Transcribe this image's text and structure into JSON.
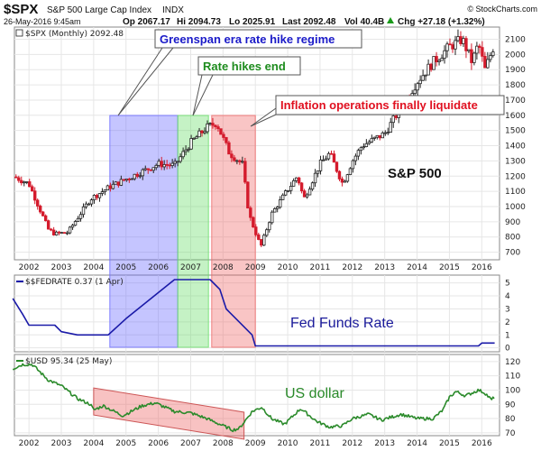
{
  "header": {
    "symbol": "$SPX",
    "name": "S&P 500 Large Cap Index",
    "exchange": "INDX",
    "date": "26-May-2016 9:45am",
    "open": "Op 2067.17",
    "high": "Hi 2094.73",
    "low": "Lo 2025.91",
    "last": "Last 2092.48",
    "vol": "Vol 40.4B",
    "chg": "Chg +27.18 (+1.32%)",
    "chg_arrow": "up-arrow-icon",
    "brand": "© StockCharts.com"
  },
  "colors": {
    "up": "#222222",
    "down": "#d41b2c",
    "fed_line": "#1a1aa8",
    "usd_line": "#2a8a2a",
    "blue_box": "#6666ff",
    "green_box": "#66dd66",
    "red_box": "#ee6666"
  },
  "chart_data": [
    {
      "type": "candlestick",
      "panel": "price",
      "title": "$SPX (Monthly) 2092.48",
      "label": "S&P 500",
      "ylim": [
        650,
        2180
      ],
      "yticks": [
        700,
        800,
        900,
        1000,
        1100,
        1200,
        1300,
        1400,
        1500,
        1600,
        1700,
        1800,
        1900,
        2000,
        2100
      ],
      "x_anchors": [
        [
          2001.5,
          1200
        ],
        [
          2002.0,
          1150
        ],
        [
          2002.6,
          850
        ],
        [
          2002.8,
          820
        ],
        [
          2003.2,
          830
        ],
        [
          2003.9,
          1050
        ],
        [
          2004.5,
          1130
        ],
        [
          2005.0,
          1180
        ],
        [
          2006.0,
          1280
        ],
        [
          2006.5,
          1270
        ],
        [
          2007.0,
          1420
        ],
        [
          2007.5,
          1520
        ],
        [
          2007.8,
          1550
        ],
        [
          2008.2,
          1350
        ],
        [
          2008.6,
          1280
        ],
        [
          2008.8,
          950
        ],
        [
          2009.17,
          735
        ],
        [
          2009.5,
          950
        ],
        [
          2010.0,
          1110
        ],
        [
          2010.3,
          1200
        ],
        [
          2010.5,
          1050
        ],
        [
          2011.0,
          1280
        ],
        [
          2011.3,
          1350
        ],
        [
          2011.7,
          1150
        ],
        [
          2012.0,
          1300
        ],
        [
          2012.3,
          1400
        ],
        [
          2013.0,
          1480
        ],
        [
          2013.5,
          1650
        ],
        [
          2014.0,
          1820
        ],
        [
          2014.5,
          1950
        ],
        [
          2015.0,
          2050
        ],
        [
          2015.4,
          2100
        ],
        [
          2015.7,
          1950
        ],
        [
          2015.9,
          2070
        ],
        [
          2016.1,
          1900
        ],
        [
          2016.4,
          2070
        ]
      ]
    },
    {
      "type": "line",
      "panel": "fed",
      "title": "$$FEDRATE 0.37 (1 Apr)",
      "label": "Fed Funds Rate",
      "ylim": [
        -0.3,
        5.6
      ],
      "yticks": [
        0,
        1,
        2,
        3,
        4,
        5
      ],
      "points": [
        [
          2001.5,
          3.8
        ],
        [
          2001.8,
          2.6
        ],
        [
          2002.0,
          1.75
        ],
        [
          2002.8,
          1.75
        ],
        [
          2003.0,
          1.25
        ],
        [
          2003.5,
          1.0
        ],
        [
          2004.45,
          1.0
        ],
        [
          2005.0,
          2.25
        ],
        [
          2006.0,
          4.25
        ],
        [
          2006.5,
          5.25
        ],
        [
          2007.6,
          5.25
        ],
        [
          2007.9,
          4.5
        ],
        [
          2008.1,
          3.0
        ],
        [
          2008.5,
          2.0
        ],
        [
          2008.9,
          1.0
        ],
        [
          2009.0,
          0.15
        ],
        [
          2015.9,
          0.15
        ],
        [
          2016.0,
          0.37
        ],
        [
          2016.4,
          0.37
        ]
      ]
    },
    {
      "type": "line",
      "panel": "usd",
      "title": "$USD 95.34 (25 May)",
      "label": "US dollar",
      "ylim": [
        68,
        125
      ],
      "yticks": [
        70,
        80,
        90,
        100,
        110,
        120
      ],
      "points": [
        [
          2001.5,
          115
        ],
        [
          2001.8,
          118
        ],
        [
          2002.1,
          118
        ],
        [
          2002.6,
          107
        ],
        [
          2003.0,
          103
        ],
        [
          2003.5,
          94
        ],
        [
          2003.9,
          90
        ],
        [
          2004.0,
          86
        ],
        [
          2004.3,
          89
        ],
        [
          2004.9,
          82
        ],
        [
          2005.5,
          89
        ],
        [
          2005.9,
          91
        ],
        [
          2006.5,
          85
        ],
        [
          2007.0,
          84
        ],
        [
          2007.5,
          80
        ],
        [
          2007.9,
          76
        ],
        [
          2008.3,
          72
        ],
        [
          2008.5,
          73
        ],
        [
          2008.9,
          85
        ],
        [
          2009.2,
          88
        ],
        [
          2009.5,
          80
        ],
        [
          2009.9,
          76
        ],
        [
          2010.4,
          87
        ],
        [
          2010.9,
          78
        ],
        [
          2011.3,
          74
        ],
        [
          2011.7,
          75
        ],
        [
          2012.0,
          80
        ],
        [
          2012.5,
          83
        ],
        [
          2012.9,
          79
        ],
        [
          2013.5,
          83
        ],
        [
          2014.0,
          80
        ],
        [
          2014.5,
          80
        ],
        [
          2014.8,
          86
        ],
        [
          2015.0,
          95
        ],
        [
          2015.2,
          99
        ],
        [
          2015.5,
          96
        ],
        [
          2015.9,
          100
        ],
        [
          2016.1,
          98
        ],
        [
          2016.3,
          93
        ],
        [
          2016.4,
          95.34
        ]
      ]
    }
  ],
  "x_axis": {
    "range": [
      2001.55,
      2016.55
    ],
    "labels": [
      "2002",
      "2003",
      "2004",
      "2005",
      "2006",
      "2007",
      "2008",
      "2009",
      "2010",
      "2011",
      "2012",
      "2013",
      "2014",
      "2015",
      "2016"
    ],
    "values": [
      2002,
      2003,
      2004,
      2005,
      2006,
      2007,
      2008,
      2009,
      2010,
      2011,
      2012,
      2013,
      2014,
      2015,
      2016
    ]
  },
  "annotations": [
    {
      "text": "Greenspan era rate hike regime",
      "color": "#1a1ac8",
      "box": "blue"
    },
    {
      "text": "Rate hikes end",
      "color": "#1e8c1e",
      "box": "green"
    },
    {
      "text": "Inflation operations finally liquidate",
      "color": "#e01020",
      "box": "red"
    }
  ],
  "regions": [
    {
      "name": "blue",
      "from": 2004.5,
      "to": 2006.6
    },
    {
      "name": "green",
      "from": 2006.6,
      "to": 2007.55
    },
    {
      "name": "red",
      "from": 2007.65,
      "to": 2009.0
    }
  ],
  "usd_trend": {
    "from_date": 2004.0,
    "to_date": 2008.65,
    "from_value": 92,
    "to_value": 75
  }
}
